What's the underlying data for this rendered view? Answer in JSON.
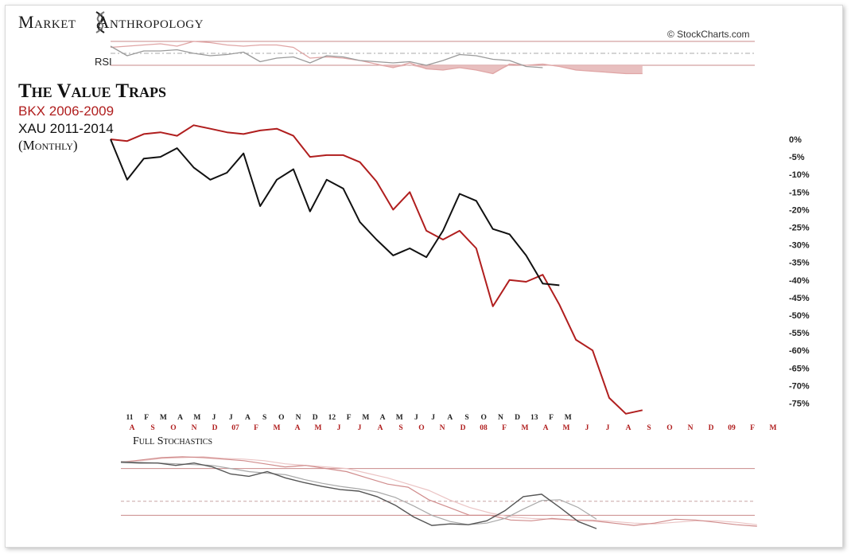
{
  "header": {
    "brand_word1": "Market",
    "brand_word2": "Anthropology",
    "credit": "© StockCharts.com"
  },
  "labels": {
    "title": "The Value Traps",
    "series1": "BKX 2006-2009",
    "series2": "XAU 2011-2014",
    "period": "(Monthly)",
    "rsi": "RSI",
    "stochastics": "Full Stochastics"
  },
  "colors": {
    "bkx": "#b01e1e",
    "xau": "#111111",
    "bkx_faint": "#e0a5a5",
    "xau_faint": "#9a9a9a",
    "rsi_fill": "#e6b8b8"
  },
  "chart_data": {
    "type": "line",
    "ylim": [
      -78,
      7
    ],
    "y_ticks": [
      "0%",
      "-5%",
      "-10%",
      "-15%",
      "-20%",
      "-25%",
      "-30%",
      "-35%",
      "-40%",
      "-45%",
      "-50%",
      "-55%",
      "-60%",
      "-65%",
      "-70%",
      "-75%"
    ],
    "y_tick_values": [
      0,
      -5,
      -10,
      -15,
      -20,
      -25,
      -30,
      -35,
      -40,
      -45,
      -50,
      -55,
      -60,
      -65,
      -70,
      -75
    ],
    "x_tick_labels_top": [
      "11",
      "F",
      "M",
      "A",
      "M",
      "J",
      "J",
      "A",
      "S",
      "O",
      "N",
      "D",
      "12",
      "F",
      "M",
      "A",
      "M",
      "J",
      "J",
      "A",
      "S",
      "O",
      "N",
      "D",
      "13",
      "F",
      "M"
    ],
    "x_tick_labels_bottom": [
      "A",
      "S",
      "O",
      "N",
      "D",
      "07",
      "F",
      "M",
      "A",
      "M",
      "J",
      "J",
      "A",
      "S",
      "O",
      "N",
      "D",
      "08",
      "F",
      "M",
      "A",
      "M",
      "J",
      "J",
      "A",
      "S",
      "O",
      "N",
      "D",
      "09",
      "F",
      "M"
    ],
    "series": [
      {
        "name": "BKX 2006-2009",
        "values": [
          0,
          -0.5,
          1.5,
          2,
          1,
          4,
          3,
          2,
          1.5,
          2.5,
          3,
          1,
          -5,
          -4.5,
          -4.5,
          -6.5,
          -12,
          -20,
          -15,
          -26,
          -28.5,
          -26,
          -31,
          -47.5,
          -40,
          -40.5,
          -38.5,
          -47,
          -57,
          -60,
          -73.5,
          -78,
          -77
        ]
      },
      {
        "name": "XAU 2011-2014",
        "values": [
          0,
          -11.5,
          -5.5,
          -5,
          -2.5,
          -8,
          -11.5,
          -9.5,
          -4,
          -19,
          -11.5,
          -8.5,
          -20.5,
          -11.5,
          -14,
          -23.5,
          -28.5,
          -33,
          -31,
          -33.5,
          -26,
          -15.5,
          -17.5,
          -25.5,
          -27,
          -33,
          -41,
          -41.5
        ]
      }
    ],
    "rsi": {
      "bkx": [
        55,
        56,
        57,
        58,
        56,
        60,
        59,
        57,
        56,
        57,
        57,
        55,
        46,
        47,
        46,
        44,
        41,
        38,
        42,
        37,
        36,
        38,
        36,
        33,
        41,
        40,
        41,
        39,
        36,
        35,
        34,
        33,
        33
      ],
      "xau": [
        56,
        48,
        52,
        52,
        53,
        50,
        48,
        49,
        51,
        43,
        46,
        47,
        42,
        48,
        47,
        44,
        43,
        42,
        43,
        40,
        44,
        49,
        48,
        45,
        44,
        39,
        38
      ]
    },
    "stochastics": {
      "bkx_k": [
        88,
        91,
        94,
        95,
        94,
        92,
        90,
        86,
        82,
        84,
        80,
        76,
        68,
        60,
        56,
        40,
        30,
        20,
        20,
        14,
        13,
        16,
        14,
        13,
        10,
        7,
        10,
        15,
        14,
        11,
        8,
        6
      ],
      "bkx_d": [
        89,
        90,
        93,
        94,
        95,
        93,
        92,
        90,
        86,
        84,
        82,
        80,
        74,
        68,
        60,
        52,
        40,
        30,
        23,
        18,
        16,
        15,
        14,
        14,
        12,
        10,
        9,
        11,
        13,
        13,
        11,
        8
      ],
      "xau_k": [
        88,
        87,
        87,
        84,
        87,
        82,
        73,
        70,
        76,
        68,
        62,
        57,
        53,
        51,
        44,
        33,
        18,
        7,
        9,
        8,
        13,
        26,
        44,
        47,
        30,
        12,
        3
      ],
      "xau_d": [
        89,
        88,
        87,
        86,
        85,
        84,
        80,
        76,
        74,
        72,
        66,
        61,
        57,
        54,
        50,
        43,
        32,
        20,
        12,
        8,
        10,
        16,
        28,
        39,
        40,
        30,
        15
      ]
    }
  }
}
